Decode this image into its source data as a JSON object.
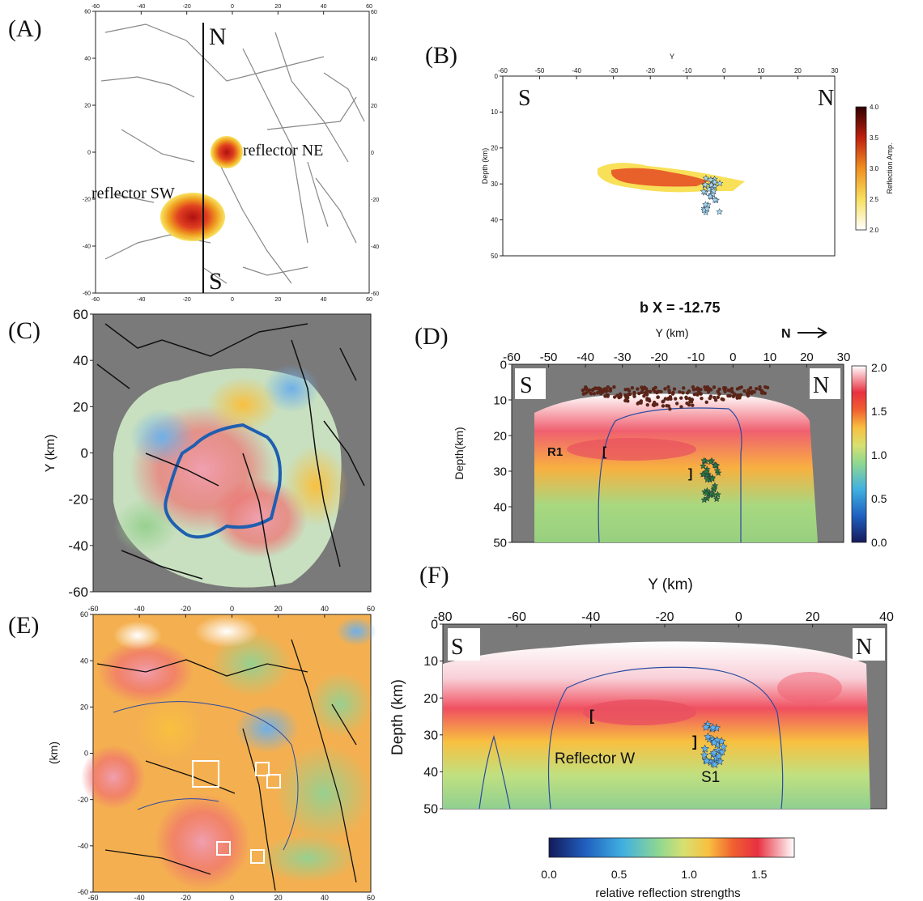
{
  "panels": {
    "A": {
      "label": "(A)",
      "left": "N",
      "bottom": "S",
      "reflector_ne": "reflector NE",
      "reflector_sw": "reflector SW"
    },
    "B": {
      "label": "(B)",
      "xlabel": "Y",
      "ylabel": "Depth (km)",
      "left": "S",
      "right": "N",
      "cbar_label": "Reflection Amp."
    },
    "C": {
      "label": "(C)",
      "ylabel": "Y (km)"
    },
    "D": {
      "label": "(D)",
      "title": "b  X = -12.75",
      "xlabel": "Y (km)",
      "ylabel": "Depth(km)",
      "left": "S",
      "right": "N",
      "north": "N",
      "r1": "R1",
      "bracket_l": "[",
      "bracket_r": "]"
    },
    "E": {
      "label": "(E)",
      "ylabel": "(km)"
    },
    "F": {
      "label": "(F)",
      "xlabel": "Y (km)",
      "ylabel": "Depth (km)",
      "left": "S",
      "right": "N",
      "reflector_w": "Reflector W",
      "s1": "S1",
      "bracket_l": "[",
      "bracket_r": "]"
    },
    "cbar": {
      "label": "relative reflection strengths"
    }
  },
  "chart_data": [
    {
      "panel": "A",
      "type": "heatmap",
      "title": "",
      "xlim": [
        -60,
        60
      ],
      "ylim": [
        -60,
        60
      ],
      "xticks": [
        "-60",
        "-40",
        "-20",
        "0",
        "20",
        "40",
        "60"
      ],
      "yticks": [
        "60",
        "40",
        "20",
        "0",
        "-20",
        "-40",
        "-60"
      ]
    },
    {
      "panel": "B",
      "type": "heatmap",
      "xlim": [
        -60,
        30
      ],
      "ylim": [
        50,
        0
      ],
      "xticks": [
        "-60",
        "-50",
        "-40",
        "-30",
        "-20",
        "-10",
        "0",
        "10",
        "20",
        "30"
      ],
      "yticks": [
        "0",
        "10",
        "20",
        "30",
        "40",
        "50"
      ],
      "colorbar": {
        "min": 2.0,
        "max": 4.0,
        "ticks": [
          "4.0",
          "3.5",
          "3.0",
          "2.5",
          "2.0"
        ]
      }
    },
    {
      "panel": "C",
      "type": "heatmap",
      "ylim": [
        -60,
        60
      ],
      "yticks": [
        "60",
        "40",
        "20",
        "0",
        "-20",
        "-40",
        "-60"
      ]
    },
    {
      "panel": "D",
      "type": "heatmap",
      "xlim": [
        -60,
        30
      ],
      "ylim": [
        50,
        0
      ],
      "xticks": [
        "-60",
        "-50",
        "-40",
        "-30",
        "-20",
        "-10",
        "0",
        "10",
        "20",
        "30"
      ],
      "yticks": [
        "0",
        "10",
        "20",
        "30",
        "40",
        "50"
      ],
      "colorbar": {
        "min": 0.0,
        "max": 2.0,
        "ticks": [
          "2.0",
          "1.5",
          "1.0",
          "0.5",
          "0.0"
        ]
      }
    },
    {
      "panel": "E",
      "type": "heatmap",
      "xlim": [
        -60,
        60
      ],
      "ylim": [
        -60,
        60
      ],
      "xticks": [
        "-60",
        "-40",
        "-20",
        "0",
        "20",
        "40",
        "60"
      ],
      "yticks": [
        "60",
        "40",
        "20",
        "0",
        "-20",
        "-40",
        "-60"
      ]
    },
    {
      "panel": "F",
      "type": "heatmap",
      "xlim": [
        -80,
        40
      ],
      "ylim": [
        50,
        0
      ],
      "xticks": [
        "-80",
        "-60",
        "-40",
        "-20",
        "0",
        "20",
        "40"
      ],
      "yticks": [
        "0",
        "10",
        "20",
        "30",
        "40",
        "50"
      ],
      "colorbar": {
        "min": 0.0,
        "max": 1.75,
        "ticks": [
          "0.0",
          "0.5",
          "1.0",
          "1.5"
        ]
      }
    }
  ]
}
